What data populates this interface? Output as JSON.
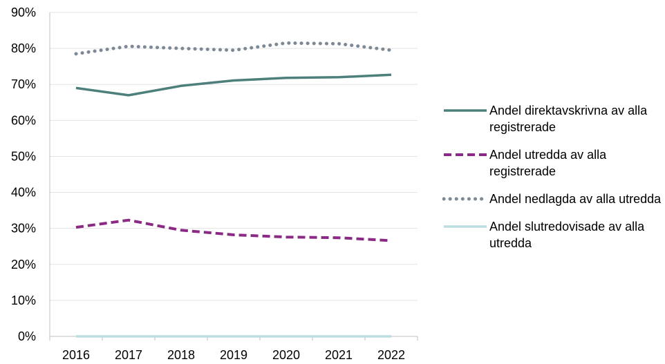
{
  "chart_data": {
    "type": "line",
    "categories": [
      "2016",
      "2017",
      "2018",
      "2019",
      "2020",
      "2021",
      "2022"
    ],
    "y_ticks": [
      "0%",
      "10%",
      "20%",
      "30%",
      "40%",
      "50%",
      "60%",
      "70%",
      "80%",
      "90%"
    ],
    "ylim": [
      0,
      90
    ],
    "grid": true,
    "legend_position": "right",
    "series": [
      {
        "name": "Andel direktavskrivna av alla registrerade",
        "values": [
          69,
          67,
          69.6,
          71.1,
          71.8,
          72.0,
          72.7
        ],
        "color": "#4d7f7b",
        "style": "solid"
      },
      {
        "name": "Andel utredda av alla registrerade",
        "values": [
          30.3,
          32.3,
          29.5,
          28.2,
          27.6,
          27.4,
          26.6
        ],
        "color": "#8b2a85",
        "style": "dashed"
      },
      {
        "name": "Andel nedlagda av alla utredda",
        "values": [
          78.5,
          80.6,
          80.0,
          79.5,
          81.5,
          81.3,
          79.5
        ],
        "color": "#7d8a96",
        "style": "dotted"
      },
      {
        "name": "Andel slutredovisade av alla utredda",
        "values": [
          0,
          0,
          0,
          0,
          0,
          0,
          0
        ],
        "color": "#bcdde1",
        "style": "solid"
      }
    ]
  }
}
